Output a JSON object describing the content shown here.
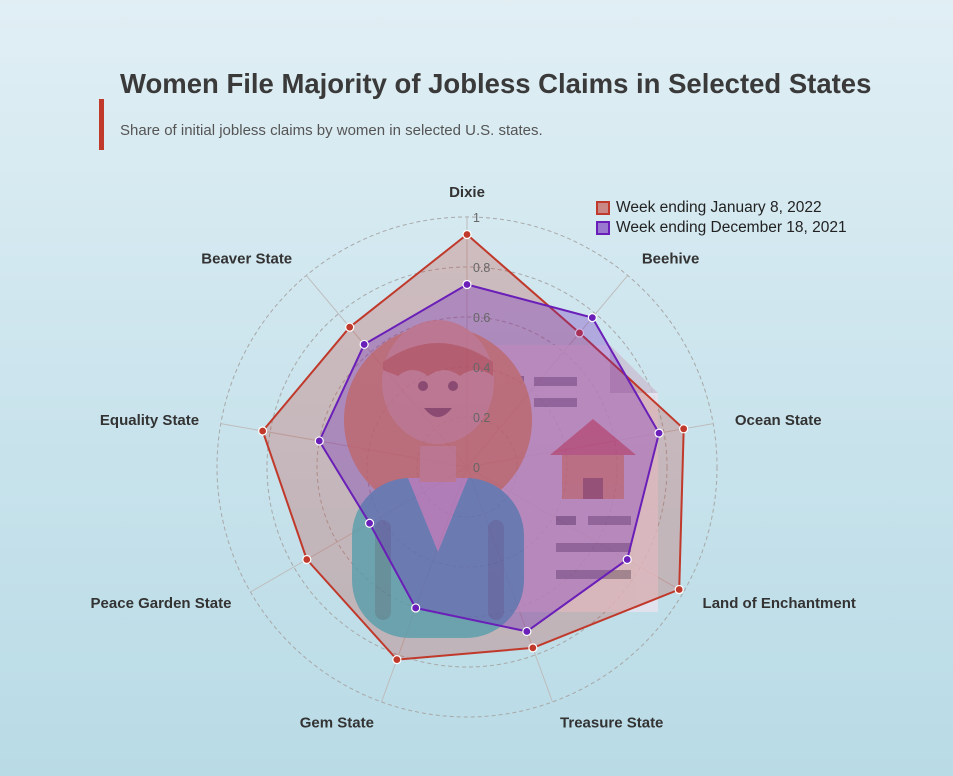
{
  "title": "Women File Majority of Jobless Claims in Selected States",
  "subtitle": "Share of initial jobless claims by women in selected U.S. states.",
  "colors": {
    "accent": "#c0392b",
    "series_a": "#c0392b",
    "series_b": "#6a1fb8"
  },
  "chart_data": {
    "type": "radar",
    "categories": [
      "Dixie",
      "Beehive",
      "Ocean State",
      "Land of Enchantment",
      "Treasure State",
      "Gem State",
      "Peace Garden State",
      "Equality State",
      "Beaver State"
    ],
    "radial_ticks": [
      "0",
      "0.2",
      "0.4",
      "0.6",
      "0.8",
      "1"
    ],
    "range": [
      0,
      1
    ],
    "legend_position": "top-right",
    "series": [
      {
        "name": "Week ending January 8, 2022",
        "values": [
          0.93,
          0.7,
          0.88,
          0.98,
          0.77,
          0.82,
          0.74,
          0.83,
          0.73
        ]
      },
      {
        "name": "Week ending December 18, 2021",
        "values": [
          0.73,
          0.78,
          0.78,
          0.74,
          0.7,
          0.6,
          0.45,
          0.6,
          0.64
        ]
      }
    ]
  },
  "illustration": {
    "icon": "woman-holding-housing-document-icon"
  }
}
